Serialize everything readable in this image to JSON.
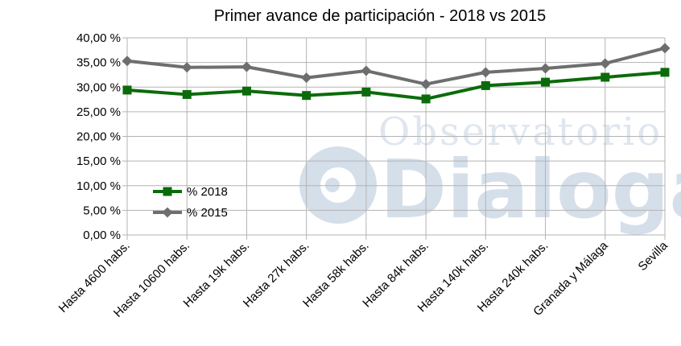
{
  "watermark": {
    "line1": "Observatorio",
    "line2": "Dialoga",
    "logo_icon": "dialoga-logo-icon"
  },
  "colors": {
    "series_2018": "#0b6b0b",
    "series_2015": "#6e6e6e",
    "grid": "#b3b3b3",
    "axis": "#b3b3b3"
  },
  "chart_data": {
    "type": "line",
    "title": "Primer avance de participación - 2018 vs 2015",
    "xlabel": "",
    "ylabel": "",
    "categories": [
      "Hasta 4600 habs.",
      "Hasta 10600 habs.",
      "Hasta 19k habs.",
      "Hasta 27k habs.",
      "Hasta 58k habs.",
      "Hasta 84k habs.",
      "Hasta 140k habs.",
      "Hasta 240k habs.",
      "Granada y Málaga",
      "Sevilla"
    ],
    "ylim": [
      0,
      40
    ],
    "yticks": [
      "0,00 %",
      "5,00 %",
      "10,00 %",
      "15,00 %",
      "20,00 %",
      "25,00 %",
      "30,00 %",
      "35,00 %",
      "40,00 %"
    ],
    "grid": true,
    "legend_position": "bottom-left",
    "series": [
      {
        "name": "% 2018",
        "marker": "square",
        "values": [
          29.4,
          28.5,
          29.2,
          28.3,
          29.0,
          27.6,
          30.3,
          31.0,
          32.0,
          33.0
        ]
      },
      {
        "name": "% 2015",
        "marker": "diamond",
        "values": [
          35.3,
          34.0,
          34.1,
          31.9,
          33.3,
          30.6,
          33.0,
          33.8,
          34.8,
          37.9
        ]
      }
    ]
  }
}
